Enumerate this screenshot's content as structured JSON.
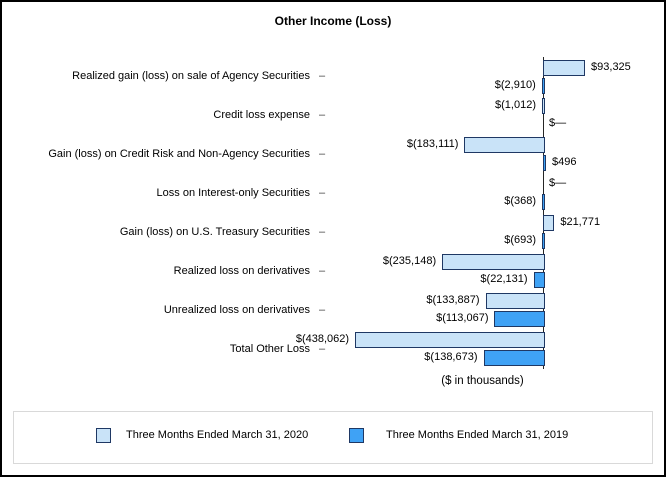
{
  "chart_data": {
    "type": "bar",
    "orientation": "horizontal",
    "title": "Other Income (Loss)",
    "xlabel": "($ in thousands)",
    "ylabel": "",
    "xlim": [
      -460000,
      110000
    ],
    "grid": false,
    "legend_position": "bottom",
    "categories": [
      "Realized gain (loss) on sale of Agency Securities",
      "Credit loss expense",
      "Gain (loss) on Credit Risk and Non-Agency Securities",
      "Loss on Interest-only Securities",
      "Gain (loss) on U.S. Treasury Securities",
      "Realized loss on derivatives",
      "Unrealized loss on derivatives",
      "Total Other Loss"
    ],
    "series": [
      {
        "name": "Three Months Ended March 31, 2020",
        "values": [
          93325,
          -1012,
          -183111,
          0,
          21771,
          -235148,
          -133887,
          -438062
        ],
        "labels": [
          "$93,325",
          "$(1,012)",
          "$(183,111)",
          "$—",
          "$21,771",
          "$(235,148)",
          "$(133,887)",
          "$(438,062)"
        ]
      },
      {
        "name": "Three Months Ended March 31, 2019",
        "values": [
          -2910,
          0,
          496,
          -368,
          -693,
          -22131,
          -113067,
          -138673
        ],
        "labels": [
          "$(2,910)",
          "$—",
          "$496",
          "$(368)",
          "$(693)",
          "$(22,131)",
          "$(113,067)",
          "$(138,673)"
        ]
      }
    ]
  },
  "legend": [
    {
      "label": "Three Months Ended March 31, 2020",
      "color": "#C9E3F8"
    },
    {
      "label": "Three Months Ended March 31, 2019",
      "color": "#3FA2F5"
    }
  ],
  "colors": {
    "series_2020": "#C9E3F8",
    "series_2019": "#3FA2F5",
    "bar_border": "#1F3864",
    "axis": "#262626",
    "tick": "#404040",
    "legend_border": "#D9D9D9",
    "frame_border": "#000000"
  },
  "tick_glyph": "–"
}
